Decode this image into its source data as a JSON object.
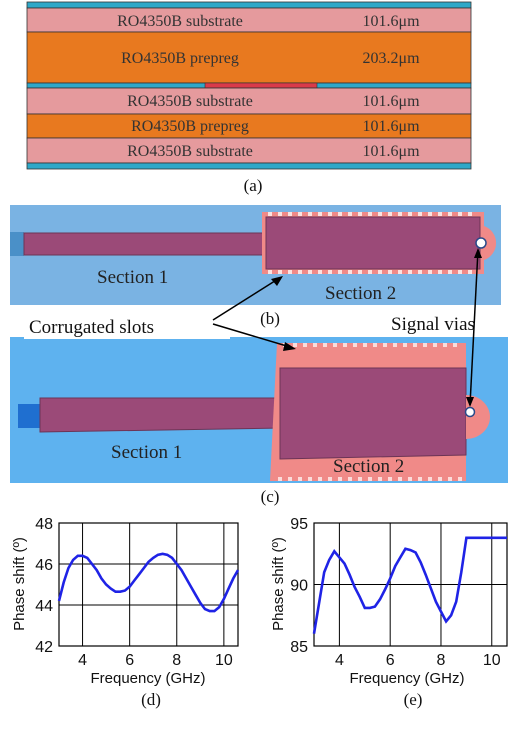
{
  "stackup": {
    "layers": [
      {
        "name": "RO4350B substrate",
        "thickness": "101.6μm"
      },
      {
        "name": "RO4350B prepreg",
        "thickness": "203.2μm"
      },
      {
        "name": "RO4350B substrate",
        "thickness": "101.6μm"
      },
      {
        "name": "RO4350B prepreg",
        "thickness": "101.6μm"
      },
      {
        "name": "RO4350B substrate",
        "thickness": "101.6μm"
      }
    ],
    "caption": "(a)"
  },
  "layout_b": {
    "section1": "Section 1",
    "section2": "Section 2",
    "caption": "(b)"
  },
  "annotations": {
    "corrugated": "Corrugated slots",
    "vias": "Signal vias"
  },
  "layout_c": {
    "section1": "Section 1",
    "section2": "Section 2",
    "caption": "(c)"
  },
  "colors": {
    "substrate": "#e59a9d",
    "prepreg": "#e8791f",
    "copper": "#2fa8c8",
    "board": "#7ab3e3",
    "trace": "#9b4a78",
    "ground_pad": "#f08a88",
    "plot_line": "#1f23e6"
  },
  "chart_data": [
    {
      "type": "line",
      "caption": "(d)",
      "xlabel": "Frequency (GHz)",
      "ylabel": "Phase shift (º)",
      "xlim": [
        3,
        10.6
      ],
      "ylim": [
        42,
        48
      ],
      "xticks": [
        "4",
        "6",
        "8",
        "10"
      ],
      "yticks": [
        "42",
        "44",
        "46",
        "48"
      ],
      "grid": true,
      "x": [
        3.0,
        3.2,
        3.4,
        3.6,
        3.8,
        4.0,
        4.2,
        4.4,
        4.6,
        4.8,
        5.0,
        5.2,
        5.4,
        5.6,
        5.8,
        6.0,
        6.2,
        6.4,
        6.6,
        6.8,
        7.0,
        7.2,
        7.4,
        7.6,
        7.8,
        8.0,
        8.2,
        8.4,
        8.6,
        8.8,
        9.0,
        9.2,
        9.4,
        9.6,
        9.8,
        10.0,
        10.2,
        10.4,
        10.6
      ],
      "y": [
        44.2,
        45.1,
        45.8,
        46.2,
        46.4,
        46.4,
        46.3,
        46.0,
        45.7,
        45.3,
        45.0,
        44.8,
        44.65,
        44.65,
        44.7,
        44.9,
        45.2,
        45.5,
        45.8,
        46.1,
        46.3,
        46.45,
        46.5,
        46.45,
        46.3,
        46.0,
        45.7,
        45.3,
        44.9,
        44.5,
        44.1,
        43.8,
        43.7,
        43.7,
        43.9,
        44.3,
        44.8,
        45.3,
        45.7
      ]
    },
    {
      "type": "line",
      "caption": "(e)",
      "xlabel": "Frequency (GHz)",
      "ylabel": "Phase shift (º)",
      "xlim": [
        3,
        10.6
      ],
      "ylim": [
        85,
        95
      ],
      "xticks": [
        "4",
        "6",
        "8",
        "10"
      ],
      "yticks": [
        "85",
        "90",
        "95"
      ],
      "grid": true,
      "x": [
        3.0,
        3.2,
        3.4,
        3.6,
        3.8,
        4.0,
        4.2,
        4.4,
        4.6,
        4.8,
        5.0,
        5.2,
        5.4,
        5.6,
        5.8,
        6.0,
        6.2,
        6.4,
        6.6,
        6.8,
        7.0,
        7.2,
        7.4,
        7.6,
        7.8,
        8.0,
        8.2,
        8.4,
        8.6,
        8.8,
        9.0,
        9.2,
        9.4,
        9.6,
        9.8,
        10.0,
        10.2,
        10.4,
        10.6
      ],
      "y": [
        86.0,
        88.5,
        91.0,
        92.0,
        92.7,
        92.2,
        91.7,
        90.8,
        89.8,
        89.0,
        88.1,
        88.1,
        88.2,
        88.8,
        89.6,
        90.5,
        91.5,
        92.2,
        92.9,
        92.8,
        92.6,
        91.8,
        90.8,
        89.7,
        88.6,
        87.8,
        87.0,
        87.5,
        88.6,
        91.0,
        93.8,
        93.8,
        93.8,
        93.8,
        93.8,
        93.8,
        93.8,
        93.8,
        93.8
      ]
    }
  ]
}
